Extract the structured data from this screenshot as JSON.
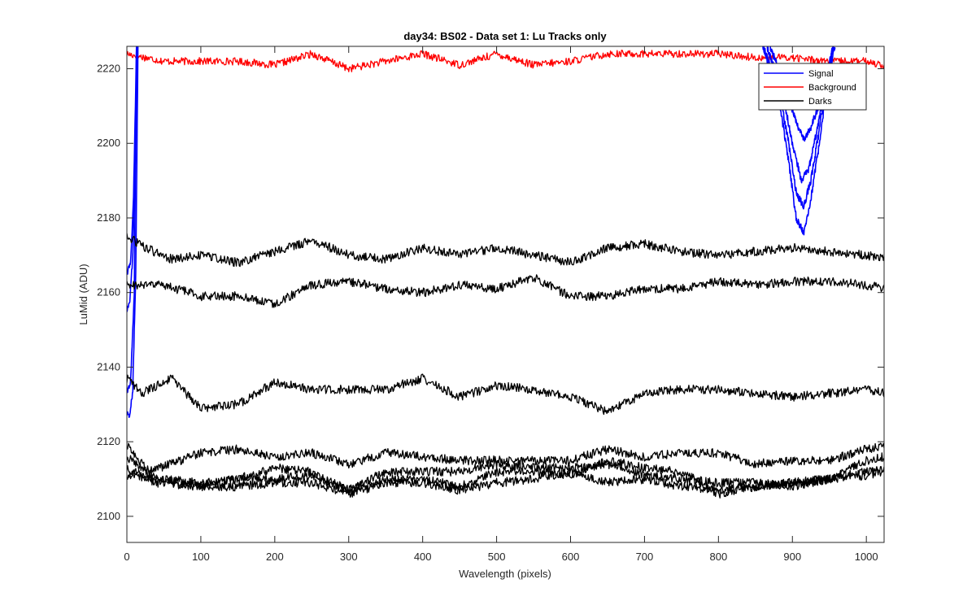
{
  "chart_data": {
    "type": "line",
    "title": "day34: BS02 - Data set 1: Lu Tracks only",
    "xlabel": "Wavelength (pixels)",
    "ylabel": "LuMid (ADU)",
    "xlim": [
      0,
      1024
    ],
    "ylim": [
      2093,
      2226
    ],
    "xticks": [
      0,
      100,
      200,
      300,
      400,
      500,
      600,
      700,
      800,
      900,
      1000
    ],
    "yticks": [
      2100,
      2120,
      2140,
      2160,
      2180,
      2200,
      2220
    ],
    "grid": false,
    "legend": {
      "position": "top-right",
      "entries": [
        {
          "label": "Signal",
          "color": "#0000ff"
        },
        {
          "label": "Background",
          "color": "#ff0000"
        },
        {
          "label": "Darks",
          "color": "#000000"
        }
      ]
    },
    "series": [
      {
        "group": "Background",
        "color": "#ff0000",
        "knots": [
          [
            0,
            2224
          ],
          [
            50,
            2222
          ],
          [
            100,
            2222
          ],
          [
            150,
            2222
          ],
          [
            200,
            2221
          ],
          [
            250,
            2224
          ],
          [
            300,
            2220
          ],
          [
            350,
            2222
          ],
          [
            400,
            2224
          ],
          [
            450,
            2221
          ],
          [
            500,
            2224
          ],
          [
            550,
            2221
          ],
          [
            600,
            2222
          ],
          [
            650,
            2224
          ],
          [
            700,
            2224
          ],
          [
            750,
            2224
          ],
          [
            800,
            2224
          ],
          [
            850,
            2223
          ],
          [
            900,
            2223
          ],
          [
            950,
            2222
          ],
          [
            1000,
            2222
          ],
          [
            1024,
            2221
          ]
        ],
        "noise": 1.0
      },
      {
        "group": "Signal",
        "color": "#0000ff",
        "knots": [
          [
            0,
            2128
          ],
          [
            4,
            2127
          ],
          [
            8,
            2134
          ],
          [
            12,
            2165
          ],
          [
            15,
            2226
          ]
        ],
        "noise": 0.8
      },
      {
        "group": "Signal",
        "color": "#0000ff",
        "knots": [
          [
            0,
            2155
          ],
          [
            4,
            2158
          ],
          [
            8,
            2170
          ],
          [
            12,
            2200
          ],
          [
            14,
            2226
          ]
        ],
        "noise": 0.8
      },
      {
        "group": "Signal",
        "color": "#0000ff",
        "knots": [
          [
            0,
            2165
          ],
          [
            5,
            2168
          ],
          [
            9,
            2185
          ],
          [
            13,
            2226
          ]
        ],
        "noise": 0.8
      },
      {
        "group": "Signal",
        "color": "#0000ff",
        "knots": [
          [
            0,
            2133
          ],
          [
            5,
            2136
          ],
          [
            10,
            2160
          ],
          [
            13,
            2226
          ]
        ],
        "noise": 0.8
      },
      {
        "group": "Signal",
        "color": "#0000ff",
        "knots": [
          [
            860,
            2226
          ],
          [
            880,
            2214
          ],
          [
            895,
            2195
          ],
          [
            905,
            2180
          ],
          [
            915,
            2176
          ],
          [
            925,
            2185
          ],
          [
            935,
            2198
          ],
          [
            945,
            2213
          ],
          [
            955,
            2226
          ]
        ],
        "noise": 1.0
      },
      {
        "group": "Signal",
        "color": "#0000ff",
        "knots": [
          [
            860,
            2226
          ],
          [
            880,
            2216
          ],
          [
            895,
            2200
          ],
          [
            905,
            2187
          ],
          [
            915,
            2183
          ],
          [
            925,
            2190
          ],
          [
            935,
            2202
          ],
          [
            945,
            2215
          ],
          [
            955,
            2226
          ]
        ],
        "noise": 1.0
      },
      {
        "group": "Signal",
        "color": "#0000ff",
        "knots": [
          [
            865,
            2226
          ],
          [
            885,
            2215
          ],
          [
            900,
            2200
          ],
          [
            912,
            2190
          ],
          [
            922,
            2193
          ],
          [
            935,
            2205
          ],
          [
            948,
            2218
          ],
          [
            958,
            2226
          ]
        ],
        "noise": 1.0
      },
      {
        "group": "Signal",
        "color": "#0000ff",
        "knots": [
          [
            870,
            2226
          ],
          [
            890,
            2215
          ],
          [
            905,
            2206
          ],
          [
            915,
            2201
          ],
          [
            925,
            2204
          ],
          [
            940,
            2213
          ],
          [
            955,
            2226
          ]
        ],
        "noise": 1.0
      },
      {
        "group": "Darks",
        "color": "#000000",
        "knots": [
          [
            0,
            2175
          ],
          [
            25,
            2172
          ],
          [
            60,
            2169
          ],
          [
            100,
            2170
          ],
          [
            150,
            2168
          ],
          [
            200,
            2171
          ],
          [
            250,
            2174
          ],
          [
            300,
            2170
          ],
          [
            350,
            2169
          ],
          [
            400,
            2172
          ],
          [
            450,
            2170
          ],
          [
            500,
            2172
          ],
          [
            550,
            2170
          ],
          [
            600,
            2168
          ],
          [
            650,
            2172
          ],
          [
            700,
            2173
          ],
          [
            750,
            2171
          ],
          [
            800,
            2170
          ],
          [
            850,
            2171
          ],
          [
            900,
            2172
          ],
          [
            950,
            2171
          ],
          [
            1000,
            2170
          ],
          [
            1024,
            2169
          ]
        ],
        "noise": 1.2
      },
      {
        "group": "Darks",
        "color": "#000000",
        "knots": [
          [
            0,
            2162
          ],
          [
            50,
            2162
          ],
          [
            100,
            2159
          ],
          [
            150,
            2159
          ],
          [
            200,
            2157
          ],
          [
            250,
            2162
          ],
          [
            300,
            2163
          ],
          [
            350,
            2161
          ],
          [
            400,
            2160
          ],
          [
            450,
            2162
          ],
          [
            500,
            2161
          ],
          [
            550,
            2164
          ],
          [
            600,
            2159
          ],
          [
            650,
            2159
          ],
          [
            700,
            2161
          ],
          [
            750,
            2161
          ],
          [
            800,
            2163
          ],
          [
            850,
            2162
          ],
          [
            900,
            2163
          ],
          [
            950,
            2163
          ],
          [
            1000,
            2162
          ],
          [
            1024,
            2161
          ]
        ],
        "noise": 1.2
      },
      {
        "group": "Darks",
        "color": "#000000",
        "knots": [
          [
            0,
            2137
          ],
          [
            20,
            2133
          ],
          [
            60,
            2137
          ],
          [
            100,
            2129
          ],
          [
            150,
            2130
          ],
          [
            200,
            2136
          ],
          [
            250,
            2134
          ],
          [
            300,
            2134
          ],
          [
            350,
            2134
          ],
          [
            400,
            2137
          ],
          [
            450,
            2132
          ],
          [
            500,
            2135
          ],
          [
            550,
            2134
          ],
          [
            600,
            2132
          ],
          [
            650,
            2128
          ],
          [
            700,
            2133
          ],
          [
            750,
            2134
          ],
          [
            800,
            2134
          ],
          [
            850,
            2133
          ],
          [
            900,
            2132
          ],
          [
            950,
            2133
          ],
          [
            1000,
            2134
          ],
          [
            1024,
            2133
          ]
        ],
        "noise": 1.2
      },
      {
        "group": "Darks",
        "color": "#000000",
        "knots": [
          [
            0,
            2119
          ],
          [
            30,
            2112
          ],
          [
            100,
            2117
          ],
          [
            150,
            2118
          ],
          [
            200,
            2116
          ],
          [
            250,
            2117
          ],
          [
            300,
            2114
          ],
          [
            350,
            2117
          ],
          [
            400,
            2116
          ],
          [
            450,
            2115
          ],
          [
            500,
            2115
          ],
          [
            550,
            2115
          ],
          [
            600,
            2115
          ],
          [
            650,
            2118
          ],
          [
            700,
            2116
          ],
          [
            750,
            2117
          ],
          [
            800,
            2117
          ],
          [
            850,
            2114
          ],
          [
            900,
            2115
          ],
          [
            950,
            2115
          ],
          [
            1000,
            2118
          ],
          [
            1024,
            2119
          ]
        ],
        "noise": 1.2
      },
      {
        "group": "Darks",
        "color": "#000000",
        "knots": [
          [
            0,
            2116
          ],
          [
            40,
            2110
          ],
          [
            100,
            2109
          ],
          [
            150,
            2110
          ],
          [
            200,
            2113
          ],
          [
            250,
            2112
          ],
          [
            300,
            2107
          ],
          [
            350,
            2112
          ],
          [
            400,
            2112
          ],
          [
            450,
            2112
          ],
          [
            500,
            2114
          ],
          [
            550,
            2113
          ],
          [
            600,
            2113
          ],
          [
            650,
            2114
          ],
          [
            700,
            2111
          ],
          [
            750,
            2110
          ],
          [
            800,
            2109
          ],
          [
            850,
            2109
          ],
          [
            900,
            2108
          ],
          [
            950,
            2110
          ],
          [
            1000,
            2115
          ],
          [
            1024,
            2116
          ]
        ],
        "noise": 1.2
      },
      {
        "group": "Darks",
        "color": "#000000",
        "knots": [
          [
            0,
            2113
          ],
          [
            40,
            2109
          ],
          [
            100,
            2108
          ],
          [
            150,
            2108
          ],
          [
            200,
            2109
          ],
          [
            250,
            2109
          ],
          [
            300,
            2106
          ],
          [
            350,
            2109
          ],
          [
            400,
            2109
          ],
          [
            450,
            2107
          ],
          [
            500,
            2109
          ],
          [
            550,
            2110
          ],
          [
            600,
            2112
          ],
          [
            650,
            2109
          ],
          [
            700,
            2110
          ],
          [
            750,
            2108
          ],
          [
            800,
            2107
          ],
          [
            850,
            2108
          ],
          [
            900,
            2109
          ],
          [
            950,
            2110
          ],
          [
            1000,
            2111
          ],
          [
            1024,
            2112
          ]
        ],
        "noise": 1.2
      },
      {
        "group": "Darks",
        "color": "#000000",
        "knots": [
          [
            0,
            2111
          ],
          [
            50,
            2110
          ],
          [
            100,
            2108
          ],
          [
            150,
            2110
          ],
          [
            200,
            2110
          ],
          [
            250,
            2111
          ],
          [
            300,
            2107
          ],
          [
            350,
            2110
          ],
          [
            400,
            2110
          ],
          [
            450,
            2108
          ],
          [
            500,
            2112
          ],
          [
            550,
            2112
          ],
          [
            600,
            2111
          ],
          [
            650,
            2115
          ],
          [
            700,
            2113
          ],
          [
            750,
            2112
          ],
          [
            800,
            2106
          ],
          [
            850,
            2108
          ],
          [
            900,
            2109
          ],
          [
            950,
            2110
          ],
          [
            1000,
            2112
          ],
          [
            1024,
            2113
          ]
        ],
        "noise": 1.2
      }
    ]
  }
}
